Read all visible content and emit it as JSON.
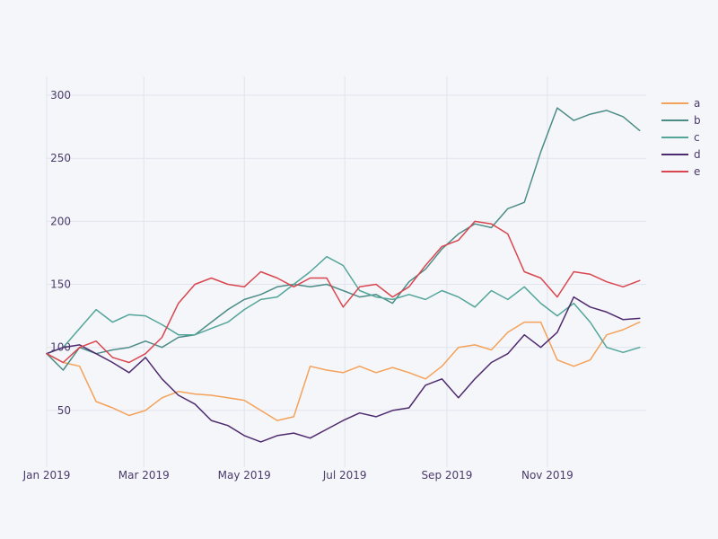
{
  "chart_data": {
    "type": "line",
    "title": "",
    "xlabel": "",
    "ylabel": "",
    "x_range": [
      "2019-01-01",
      "2019-12-31"
    ],
    "ylim": [
      5,
      315
    ],
    "x_ticks": [
      {
        "date": "2019-01-01",
        "label": "Jan 2019"
      },
      {
        "date": "2019-03-01",
        "label": "Mar 2019"
      },
      {
        "date": "2019-05-01",
        "label": "May 2019"
      },
      {
        "date": "2019-07-01",
        "label": "Jul 2019"
      },
      {
        "date": "2019-09-01",
        "label": "Sep 2019"
      },
      {
        "date": "2019-11-01",
        "label": "Nov 2019"
      }
    ],
    "y_ticks": [
      50,
      100,
      150,
      200,
      250,
      300
    ],
    "grid": true,
    "legend_position": "top-right",
    "series": [
      {
        "name": "a",
        "color": "#F4A259",
        "points": [
          [
            "2019-01-01",
            95
          ],
          [
            "2019-01-11",
            88
          ],
          [
            "2019-01-21",
            85
          ],
          [
            "2019-01-31",
            57
          ],
          [
            "2019-02-10",
            52
          ],
          [
            "2019-02-20",
            46
          ],
          [
            "2019-03-02",
            50
          ],
          [
            "2019-03-12",
            60
          ],
          [
            "2019-03-22",
            65
          ],
          [
            "2019-04-01",
            63
          ],
          [
            "2019-04-11",
            62
          ],
          [
            "2019-04-21",
            60
          ],
          [
            "2019-05-01",
            58
          ],
          [
            "2019-05-11",
            50
          ],
          [
            "2019-05-21",
            42
          ],
          [
            "2019-05-31",
            45
          ],
          [
            "2019-06-10",
            85
          ],
          [
            "2019-06-20",
            82
          ],
          [
            "2019-06-30",
            80
          ],
          [
            "2019-07-10",
            85
          ],
          [
            "2019-07-20",
            80
          ],
          [
            "2019-07-30",
            84
          ],
          [
            "2019-08-09",
            80
          ],
          [
            "2019-08-19",
            75
          ],
          [
            "2019-08-29",
            85
          ],
          [
            "2019-09-08",
            100
          ],
          [
            "2019-09-18",
            102
          ],
          [
            "2019-09-28",
            98
          ],
          [
            "2019-10-08",
            112
          ],
          [
            "2019-10-18",
            120
          ],
          [
            "2019-10-28",
            120
          ],
          [
            "2019-11-07",
            90
          ],
          [
            "2019-11-17",
            85
          ],
          [
            "2019-11-27",
            90
          ],
          [
            "2019-12-07",
            110
          ],
          [
            "2019-12-17",
            114
          ],
          [
            "2019-12-27",
            120
          ]
        ]
      },
      {
        "name": "b",
        "color": "#4C8C87",
        "points": [
          [
            "2019-01-01",
            95
          ],
          [
            "2019-01-11",
            82
          ],
          [
            "2019-01-21",
            100
          ],
          [
            "2019-01-31",
            95
          ],
          [
            "2019-02-10",
            98
          ],
          [
            "2019-02-20",
            100
          ],
          [
            "2019-03-02",
            105
          ],
          [
            "2019-03-12",
            100
          ],
          [
            "2019-03-22",
            108
          ],
          [
            "2019-04-01",
            110
          ],
          [
            "2019-04-11",
            120
          ],
          [
            "2019-04-21",
            130
          ],
          [
            "2019-05-01",
            138
          ],
          [
            "2019-05-11",
            142
          ],
          [
            "2019-05-21",
            148
          ],
          [
            "2019-05-31",
            150
          ],
          [
            "2019-06-10",
            148
          ],
          [
            "2019-06-20",
            150
          ],
          [
            "2019-06-30",
            145
          ],
          [
            "2019-07-10",
            140
          ],
          [
            "2019-07-20",
            142
          ],
          [
            "2019-07-30",
            135
          ],
          [
            "2019-08-09",
            152
          ],
          [
            "2019-08-19",
            162
          ],
          [
            "2019-08-29",
            178
          ],
          [
            "2019-09-08",
            190
          ],
          [
            "2019-09-18",
            198
          ],
          [
            "2019-09-28",
            195
          ],
          [
            "2019-10-08",
            210
          ],
          [
            "2019-10-18",
            215
          ],
          [
            "2019-10-28",
            255
          ],
          [
            "2019-11-07",
            290
          ],
          [
            "2019-11-17",
            280
          ],
          [
            "2019-11-27",
            285
          ],
          [
            "2019-12-07",
            288
          ],
          [
            "2019-12-17",
            283
          ],
          [
            "2019-12-27",
            272
          ]
        ]
      },
      {
        "name": "c",
        "color": "#53A59A",
        "points": [
          [
            "2019-01-01",
            95
          ],
          [
            "2019-01-11",
            100
          ],
          [
            "2019-01-21",
            115
          ],
          [
            "2019-01-31",
            130
          ],
          [
            "2019-02-10",
            120
          ],
          [
            "2019-02-20",
            126
          ],
          [
            "2019-03-02",
            125
          ],
          [
            "2019-03-12",
            118
          ],
          [
            "2019-03-22",
            110
          ],
          [
            "2019-04-01",
            110
          ],
          [
            "2019-04-11",
            115
          ],
          [
            "2019-04-21",
            120
          ],
          [
            "2019-05-01",
            130
          ],
          [
            "2019-05-11",
            138
          ],
          [
            "2019-05-21",
            140
          ],
          [
            "2019-05-31",
            150
          ],
          [
            "2019-06-10",
            160
          ],
          [
            "2019-06-20",
            172
          ],
          [
            "2019-06-30",
            165
          ],
          [
            "2019-07-10",
            145
          ],
          [
            "2019-07-20",
            140
          ],
          [
            "2019-07-30",
            138
          ],
          [
            "2019-08-09",
            142
          ],
          [
            "2019-08-19",
            138
          ],
          [
            "2019-08-29",
            145
          ],
          [
            "2019-09-08",
            140
          ],
          [
            "2019-09-18",
            132
          ],
          [
            "2019-09-28",
            145
          ],
          [
            "2019-10-08",
            138
          ],
          [
            "2019-10-18",
            148
          ],
          [
            "2019-10-28",
            135
          ],
          [
            "2019-11-07",
            125
          ],
          [
            "2019-11-17",
            135
          ],
          [
            "2019-11-27",
            120
          ],
          [
            "2019-12-07",
            100
          ],
          [
            "2019-12-17",
            96
          ],
          [
            "2019-12-27",
            100
          ]
        ]
      },
      {
        "name": "d",
        "color": "#4E2A6E",
        "points": [
          [
            "2019-01-01",
            95
          ],
          [
            "2019-01-11",
            100
          ],
          [
            "2019-01-21",
            102
          ],
          [
            "2019-01-31",
            95
          ],
          [
            "2019-02-10",
            88
          ],
          [
            "2019-02-20",
            80
          ],
          [
            "2019-03-02",
            92
          ],
          [
            "2019-03-12",
            75
          ],
          [
            "2019-03-22",
            62
          ],
          [
            "2019-04-01",
            55
          ],
          [
            "2019-04-11",
            42
          ],
          [
            "2019-04-21",
            38
          ],
          [
            "2019-05-01",
            30
          ],
          [
            "2019-05-11",
            25
          ],
          [
            "2019-05-21",
            30
          ],
          [
            "2019-05-31",
            32
          ],
          [
            "2019-06-10",
            28
          ],
          [
            "2019-06-20",
            35
          ],
          [
            "2019-06-30",
            42
          ],
          [
            "2019-07-10",
            48
          ],
          [
            "2019-07-20",
            45
          ],
          [
            "2019-07-30",
            50
          ],
          [
            "2019-08-09",
            52
          ],
          [
            "2019-08-19",
            70
          ],
          [
            "2019-08-29",
            75
          ],
          [
            "2019-09-08",
            60
          ],
          [
            "2019-09-18",
            75
          ],
          [
            "2019-09-28",
            88
          ],
          [
            "2019-10-08",
            95
          ],
          [
            "2019-10-18",
            110
          ],
          [
            "2019-10-28",
            100
          ],
          [
            "2019-11-07",
            112
          ],
          [
            "2019-11-17",
            140
          ],
          [
            "2019-11-27",
            132
          ],
          [
            "2019-12-07",
            128
          ],
          [
            "2019-12-17",
            122
          ],
          [
            "2019-12-27",
            123
          ]
        ]
      },
      {
        "name": "e",
        "color": "#D9464F",
        "points": [
          [
            "2019-01-01",
            95
          ],
          [
            "2019-01-11",
            88
          ],
          [
            "2019-01-21",
            100
          ],
          [
            "2019-01-31",
            105
          ],
          [
            "2019-02-10",
            92
          ],
          [
            "2019-02-20",
            88
          ],
          [
            "2019-03-02",
            95
          ],
          [
            "2019-03-12",
            108
          ],
          [
            "2019-03-22",
            135
          ],
          [
            "2019-04-01",
            150
          ],
          [
            "2019-04-11",
            155
          ],
          [
            "2019-04-21",
            150
          ],
          [
            "2019-05-01",
            148
          ],
          [
            "2019-05-11",
            160
          ],
          [
            "2019-05-21",
            155
          ],
          [
            "2019-05-31",
            148
          ],
          [
            "2019-06-10",
            155
          ],
          [
            "2019-06-20",
            155
          ],
          [
            "2019-06-30",
            132
          ],
          [
            "2019-07-10",
            148
          ],
          [
            "2019-07-20",
            150
          ],
          [
            "2019-07-30",
            140
          ],
          [
            "2019-08-09",
            148
          ],
          [
            "2019-08-19",
            165
          ],
          [
            "2019-08-29",
            180
          ],
          [
            "2019-09-08",
            185
          ],
          [
            "2019-09-18",
            200
          ],
          [
            "2019-09-28",
            198
          ],
          [
            "2019-10-08",
            190
          ],
          [
            "2019-10-18",
            160
          ],
          [
            "2019-10-28",
            155
          ],
          [
            "2019-11-07",
            140
          ],
          [
            "2019-11-17",
            160
          ],
          [
            "2019-11-27",
            158
          ],
          [
            "2019-12-07",
            152
          ],
          [
            "2019-12-17",
            148
          ],
          [
            "2019-12-27",
            153
          ]
        ]
      }
    ]
  }
}
